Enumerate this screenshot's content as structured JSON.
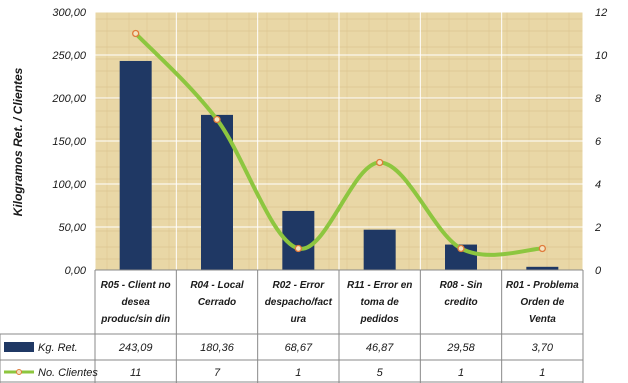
{
  "chart_data": {
    "type": "bar",
    "ylabel": "Kilogramos Ret. / Clientes",
    "categories": [
      [
        "R05 - Client no",
        "desea",
        "produc/sin din"
      ],
      [
        "R04 - Local",
        "Cerrado"
      ],
      [
        "R02 - Error",
        "despacho/fact",
        "ura"
      ],
      [
        "R11 - Error en",
        "toma de",
        "pedidos"
      ],
      [
        "R08 - Sin",
        "credito"
      ],
      [
        "R01 - Problema",
        "Orden de",
        "Venta"
      ]
    ],
    "left_axis": {
      "min": 0,
      "max": 300,
      "step": 50,
      "tick_labels": [
        "0,00",
        "50,00",
        "100,00",
        "150,00",
        "200,00",
        "250,00",
        "300,00"
      ]
    },
    "right_axis": {
      "min": 0,
      "max": 12,
      "step": 2,
      "tick_labels": [
        "0",
        "2",
        "4",
        "6",
        "8",
        "10",
        "12"
      ]
    },
    "series": [
      {
        "name": "Kg. Ret.",
        "type": "bar",
        "axis": "left",
        "color": "#1f3864",
        "values": [
          243.09,
          180.36,
          68.67,
          46.87,
          29.58,
          3.7
        ],
        "value_labels": [
          "243,09",
          "180,36",
          "68,67",
          "46,87",
          "29,58",
          "3,70"
        ]
      },
      {
        "name": "No. Clientes",
        "type": "line",
        "axis": "right",
        "color": "#8dc63f",
        "marker_color": "#e07b3c",
        "values": [
          11,
          7,
          1,
          5,
          1,
          1
        ],
        "value_labels": [
          "11",
          "7",
          "1",
          "5",
          "1",
          "1"
        ]
      }
    ],
    "data_table": true,
    "grid": true,
    "legend": "data-table"
  }
}
